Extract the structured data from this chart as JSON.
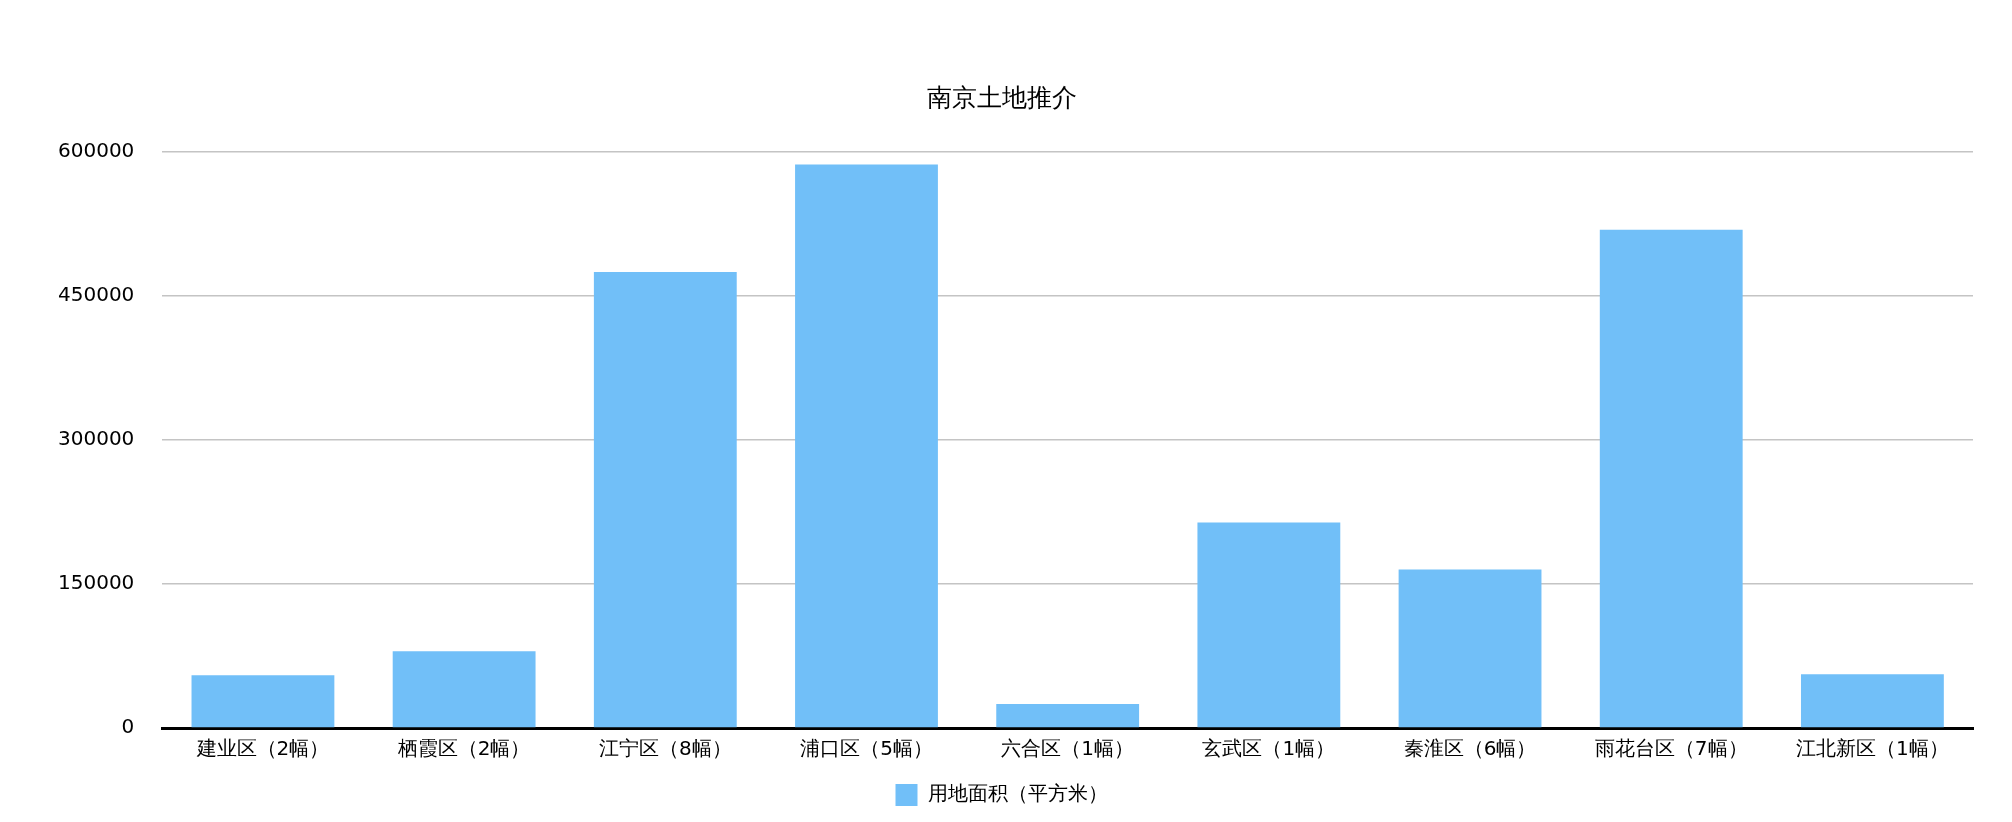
{
  "chart_data": {
    "type": "bar",
    "title": "南京土地推介",
    "categories": [
      "建业区（2幅）",
      "栖霞区（2幅）",
      "江宁区（8幅）",
      "浦口区（5幅）",
      "六合区（1幅）",
      "玄武区（1幅）",
      "秦淮区（6幅）",
      "雨花台区（7幅）",
      "江北新区（1幅）"
    ],
    "series": [
      {
        "name": "用地面积（平方米）",
        "color": "#71bff8",
        "values": [
          55000,
          80000,
          475000,
          587000,
          25000,
          214000,
          165000,
          519000,
          56000
        ]
      }
    ],
    "ylim": [
      0,
      600000
    ],
    "yticks": [
      0,
      150000,
      300000,
      450000,
      600000
    ],
    "grid": "y",
    "legend": "bottom"
  }
}
